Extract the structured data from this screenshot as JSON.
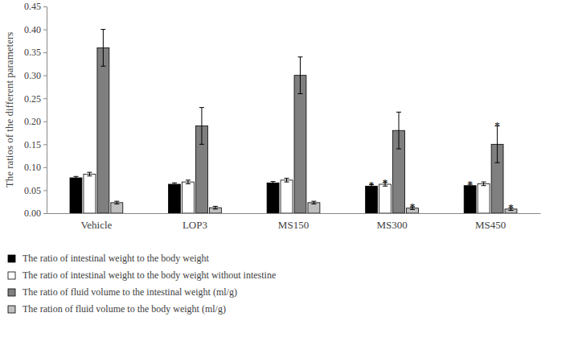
{
  "chart_data": {
    "type": "bar",
    "y_label": "The ratios of the different parameters",
    "categories": [
      "Vehicle",
      "LOP3",
      "MS150",
      "MS300",
      "MS450"
    ],
    "series": [
      {
        "name": "The ratio of intestinal weight to the body weight",
        "color": "#000000",
        "values": [
          0.077,
          0.063,
          0.066,
          0.059,
          0.06
        ],
        "errors": [
          0.003,
          0.003,
          0.003,
          0.003,
          0.003
        ],
        "annotations": [
          null,
          null,
          null,
          "*",
          "*"
        ]
      },
      {
        "name": "The ratio of intestinal weight to the body weight without intestine",
        "color": "#ffffff",
        "values": [
          0.085,
          0.068,
          0.072,
          0.063,
          0.064
        ],
        "errors": [
          0.004,
          0.004,
          0.004,
          0.004,
          0.004
        ],
        "annotations": [
          null,
          null,
          null,
          "*",
          null
        ]
      },
      {
        "name": "The ratio of fluid volume to the intestinal weight (ml/g)",
        "color": "#7f7f7f",
        "values": [
          0.36,
          0.19,
          0.3,
          0.18,
          0.15
        ],
        "errors": [
          0.04,
          0.04,
          0.04,
          0.04,
          0.04
        ],
        "annotations": [
          null,
          null,
          null,
          null,
          "*"
        ]
      },
      {
        "name": "The ration of fluid volume to the body weight (ml/g)",
        "color": "#bfbfbf",
        "values": [
          0.023,
          0.012,
          0.023,
          0.011,
          0.009
        ],
        "errors": [
          0.003,
          0.003,
          0.003,
          0.003,
          0.003
        ],
        "annotations": [
          null,
          null,
          null,
          "*",
          "*"
        ]
      }
    ],
    "ylim": [
      0,
      0.45
    ],
    "yticks": [
      {
        "value": 0,
        "label": "0.00"
      },
      {
        "value": 0.05,
        "label": "0.05"
      },
      {
        "value": 0.1,
        "label": "0.10"
      },
      {
        "value": 0.15,
        "label": "0.15"
      },
      {
        "value": 0.2,
        "label": "0.20"
      },
      {
        "value": 0.25,
        "label": "0.25"
      },
      {
        "value": 0.3,
        "label": "0.30"
      },
      {
        "value": 0.35,
        "label": "0.35"
      },
      {
        "value": 0.4,
        "label": "0.40"
      },
      {
        "value": 0.45,
        "label": "0.45"
      }
    ],
    "grid": false,
    "legend": "bottom"
  }
}
